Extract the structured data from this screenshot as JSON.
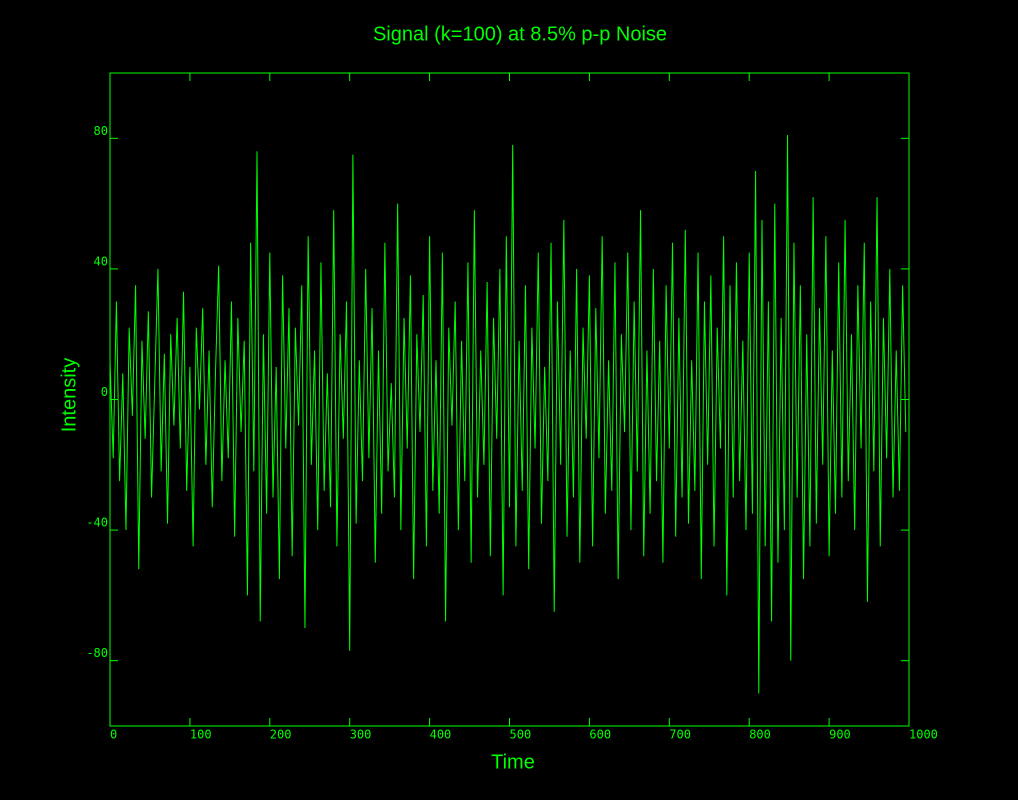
{
  "chart_data": {
    "type": "line",
    "title": "Signal (k=100) at 8.5% p-p Noise",
    "xlabel": "Time",
    "ylabel": "Intensity",
    "color": "#00ff00",
    "x": [
      0,
      4,
      8,
      12,
      16,
      20,
      24,
      28,
      32,
      36,
      40,
      44,
      48,
      52,
      56,
      60,
      64,
      68,
      72,
      76,
      80,
      84,
      88,
      92,
      96,
      100,
      104,
      108,
      112,
      116,
      120,
      124,
      128,
      132,
      136,
      140,
      144,
      148,
      152,
      156,
      160,
      164,
      168,
      172,
      176,
      180,
      184,
      188,
      192,
      196,
      200,
      204,
      208,
      212,
      216,
      220,
      224,
      228,
      232,
      236,
      240,
      244,
      248,
      252,
      256,
      260,
      264,
      268,
      272,
      276,
      280,
      284,
      288,
      292,
      296,
      300,
      304,
      308,
      312,
      316,
      320,
      324,
      328,
      332,
      336,
      340,
      344,
      348,
      352,
      356,
      360,
      364,
      368,
      372,
      376,
      380,
      384,
      388,
      392,
      396,
      400,
      404,
      408,
      412,
      416,
      420,
      424,
      428,
      432,
      436,
      440,
      444,
      448,
      452,
      456,
      460,
      464,
      468,
      472,
      476,
      480,
      484,
      488,
      492,
      496,
      500,
      504,
      508,
      512,
      516,
      520,
      524,
      528,
      532,
      536,
      540,
      544,
      548,
      552,
      556,
      560,
      564,
      568,
      572,
      576,
      580,
      584,
      588,
      592,
      596,
      600,
      604,
      608,
      612,
      616,
      620,
      624,
      628,
      632,
      636,
      640,
      644,
      648,
      652,
      656,
      660,
      664,
      668,
      672,
      676,
      680,
      684,
      688,
      692,
      696,
      700,
      704,
      708,
      712,
      716,
      720,
      724,
      728,
      732,
      736,
      740,
      744,
      748,
      752,
      756,
      760,
      764,
      768,
      772,
      776,
      780,
      784,
      788,
      792,
      796,
      800,
      804,
      808,
      812,
      816,
      820,
      824,
      828,
      832,
      836,
      840,
      844,
      848,
      852,
      856,
      860,
      864,
      868,
      872,
      876,
      880,
      884,
      888,
      892,
      896,
      900,
      904,
      908,
      912,
      916,
      920,
      924,
      928,
      932,
      936,
      940,
      944,
      948,
      952,
      956,
      960,
      964,
      968,
      972,
      976,
      980,
      984,
      988,
      992,
      996
    ],
    "values": [
      12,
      -18,
      30,
      -25,
      8,
      -40,
      22,
      -5,
      35,
      -52,
      18,
      -12,
      27,
      -30,
      5,
      40,
      -22,
      14,
      -38,
      20,
      -8,
      25,
      -15,
      33,
      -28,
      10,
      -45,
      22,
      -3,
      28,
      -20,
      15,
      -33,
      8,
      41,
      -25,
      12,
      -18,
      30,
      -42,
      25,
      -10,
      18,
      -60,
      48,
      -22,
      76,
      -68,
      20,
      -35,
      45,
      -30,
      10,
      -55,
      38,
      -15,
      28,
      -48,
      22,
      -8,
      35,
      -70,
      50,
      -20,
      15,
      -40,
      42,
      -28,
      8,
      -33,
      58,
      -45,
      20,
      -12,
      30,
      -77,
      75,
      -38,
      12,
      -25,
      40,
      -18,
      28,
      -50,
      15,
      -35,
      48,
      -22,
      5,
      -30,
      60,
      -40,
      25,
      -15,
      38,
      -55,
      20,
      -10,
      32,
      -45,
      50,
      -28,
      12,
      -35,
      45,
      -68,
      22,
      -8,
      30,
      -40,
      18,
      -25,
      42,
      -50,
      58,
      -30,
      15,
      -20,
      36,
      -48,
      25,
      -12,
      40,
      -60,
      50,
      -33,
      78,
      -45,
      18,
      -28,
      35,
      -52,
      22,
      -15,
      45,
      -38,
      10,
      -25,
      48,
      -65,
      30,
      -20,
      55,
      -42,
      15,
      -30,
      40,
      -50,
      22,
      -12,
      38,
      -45,
      28,
      -18,
      50,
      -35,
      12,
      -28,
      42,
      -55,
      20,
      -10,
      45,
      -40,
      30,
      -22,
      58,
      -48,
      15,
      -35,
      40,
      -25,
      18,
      -50,
      35,
      -15,
      48,
      -42,
      25,
      -30,
      52,
      -38,
      12,
      -28,
      45,
      -55,
      30,
      -20,
      38,
      -45,
      22,
      -15,
      50,
      -60,
      35,
      -30,
      42,
      -25,
      18,
      -40,
      45,
      -35,
      70,
      -90,
      55,
      -45,
      30,
      -68,
      60,
      -50,
      25,
      -40,
      81,
      -80,
      48,
      -30,
      35,
      -55,
      20,
      -45,
      62,
      -38,
      28,
      -20,
      50,
      -48,
      15,
      -35,
      42,
      -30,
      55,
      -25,
      20,
      -40,
      35,
      -15,
      48,
      -62,
      30,
      -22,
      62,
      -45,
      25,
      -18,
      40,
      -30,
      15,
      -28,
      35,
      -10
    ],
    "xlim": [
      0,
      1000
    ],
    "xticks": [
      0,
      100,
      200,
      300,
      400,
      500,
      600,
      700,
      800,
      900,
      1000
    ],
    "ylim": [
      -100,
      100
    ],
    "yticks": [
      -80,
      -40,
      0,
      40,
      80
    ]
  }
}
